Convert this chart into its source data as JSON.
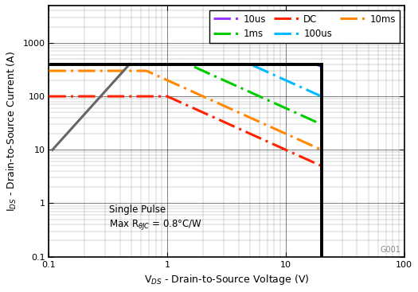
{
  "xlabel": "V$_{DS}$ - Drain-to-Source Voltage (V)",
  "ylabel": "I$_{DS}$ - Drain-to-Source Current (A)",
  "xlim": [
    0.1,
    100
  ],
  "ylim": [
    0.1,
    5000
  ],
  "watermark": "G001",
  "soa_top_y": 400,
  "soa_right_x": 20,
  "rdson": {
    "x": [
      0.107,
      0.48
    ],
    "y": [
      10,
      400
    ],
    "color": "#666666"
  },
  "curves": {
    "10us": {
      "color": "#9933FF",
      "P": 7200,
      "I_max": 400,
      "V_end": 20
    },
    "100us": {
      "color": "#00BBFF",
      "P": 2000,
      "I_max": 400,
      "V_end": 20
    },
    "1ms": {
      "color": "#00CC00",
      "P": 600,
      "I_max": 400,
      "V_end": 20
    },
    "10ms": {
      "color": "#FF8800",
      "P": 200,
      "I_max": 300,
      "V_end": 20
    },
    "DC": {
      "color": "#FF2200",
      "P": 100,
      "I_max": 100,
      "V_end": 20
    }
  },
  "legend_order": [
    "10us",
    "1ms",
    "DC",
    "100us",
    "10ms"
  ],
  "legend_ncol": 3
}
